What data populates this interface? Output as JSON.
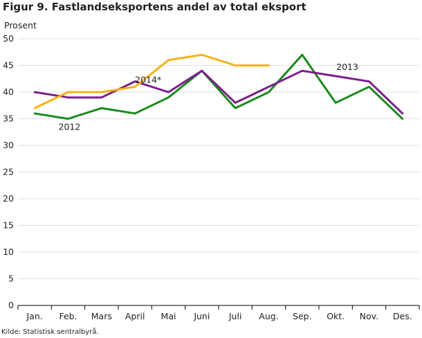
{
  "title": "Figur 9. Fastlandseksportens andel av total eksport",
  "source": "Kilde: Statistisk sentralbyrå.",
  "chart_data": {
    "type": "line",
    "ylabel": "Prosent",
    "xlabel": "",
    "ylim": [
      0,
      50
    ],
    "yticks": [
      0,
      5,
      10,
      15,
      20,
      25,
      30,
      35,
      40,
      45,
      50
    ],
    "grid": true,
    "categories": [
      "Jan.",
      "Feb.",
      "Mars",
      "April",
      "Mai",
      "Juni",
      "Juli",
      "Aug.",
      "Sep.",
      "Okt.",
      "Nov.",
      "Des."
    ],
    "series": [
      {
        "name": "2012",
        "color": "#1a8a1a",
        "values": [
          36,
          35,
          37,
          36,
          39,
          44,
          37,
          40,
          47,
          38,
          41,
          35
        ]
      },
      {
        "name": "2013",
        "color": "#7b1f8c",
        "values": [
          40,
          39,
          39,
          42,
          40,
          44,
          38,
          41,
          44,
          43,
          42,
          36
        ]
      },
      {
        "name": "2014*",
        "color": "#f5b315",
        "values": [
          37,
          40,
          40,
          41,
          46,
          47,
          45,
          45,
          null,
          null,
          null,
          null
        ]
      }
    ]
  }
}
